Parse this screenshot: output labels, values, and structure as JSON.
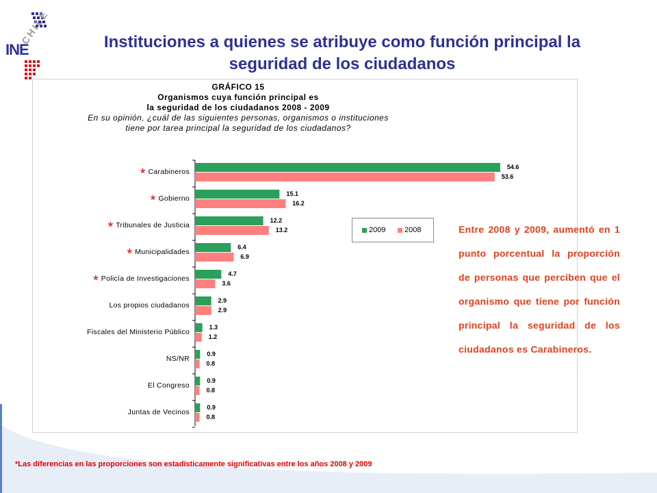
{
  "logo": {
    "country": "CHILE",
    "acronym": "INE"
  },
  "slide_title_lines": [
    "Instituciones a quienes se atribuye como función principal la",
    "seguridad de los ciudadanos"
  ],
  "chart_header": {
    "line1": "GRÁFICO 15",
    "line2": "Organismos cuya función principal es",
    "line3": "la seguridad de los ciudadanos 2008 - 2009",
    "line4": "En su opinión, ¿cuál de las siguientes personas, organismos o instituciones",
    "line5": "tiene por tarea principal la seguridad de los ciudadanos?"
  },
  "chart_data": {
    "type": "bar",
    "orientation": "horizontal",
    "categories": [
      "Carabineros",
      "Gobierno",
      "Tribunales de Justicia",
      "Municipalidades",
      "Policía de Investigaciones",
      "Los propios ciudadanos",
      "Fiscales del Ministerio Público",
      "NS/NR",
      "El Congreso",
      "Juntas de Vecinos"
    ],
    "significant": [
      true,
      true,
      true,
      true,
      true,
      false,
      false,
      false,
      false,
      false
    ],
    "significance_marker": "*",
    "series": [
      {
        "name": "2009",
        "color": "#2aa05a",
        "values": [
          54.6,
          15.1,
          12.2,
          6.4,
          4.7,
          2.9,
          1.3,
          0.9,
          0.9,
          0.9
        ]
      },
      {
        "name": "2008",
        "color": "#ff7f7f",
        "values": [
          53.6,
          16.2,
          13.2,
          6.9,
          3.6,
          2.9,
          1.2,
          0.8,
          0.8,
          0.8
        ]
      }
    ],
    "xlim": [
      0,
      60
    ],
    "legend_position": "center-right",
    "grid": false
  },
  "note_text": "Entre 2008 y 2009, aumentó en 1 punto porcentual la proporción de personas que perciben que el organismo que tiene por función principal la seguridad de los ciudadanos es Carabineros.",
  "footnote": "*Las diferencias en las proporciones son estadísticamente significativas entre los años 2008 y 2009",
  "colors": {
    "title": "#2e3192",
    "note": "#e0401c",
    "footnote": "#e40000",
    "logo_blue": "#2e3192",
    "logo_red": "#d7191c"
  }
}
